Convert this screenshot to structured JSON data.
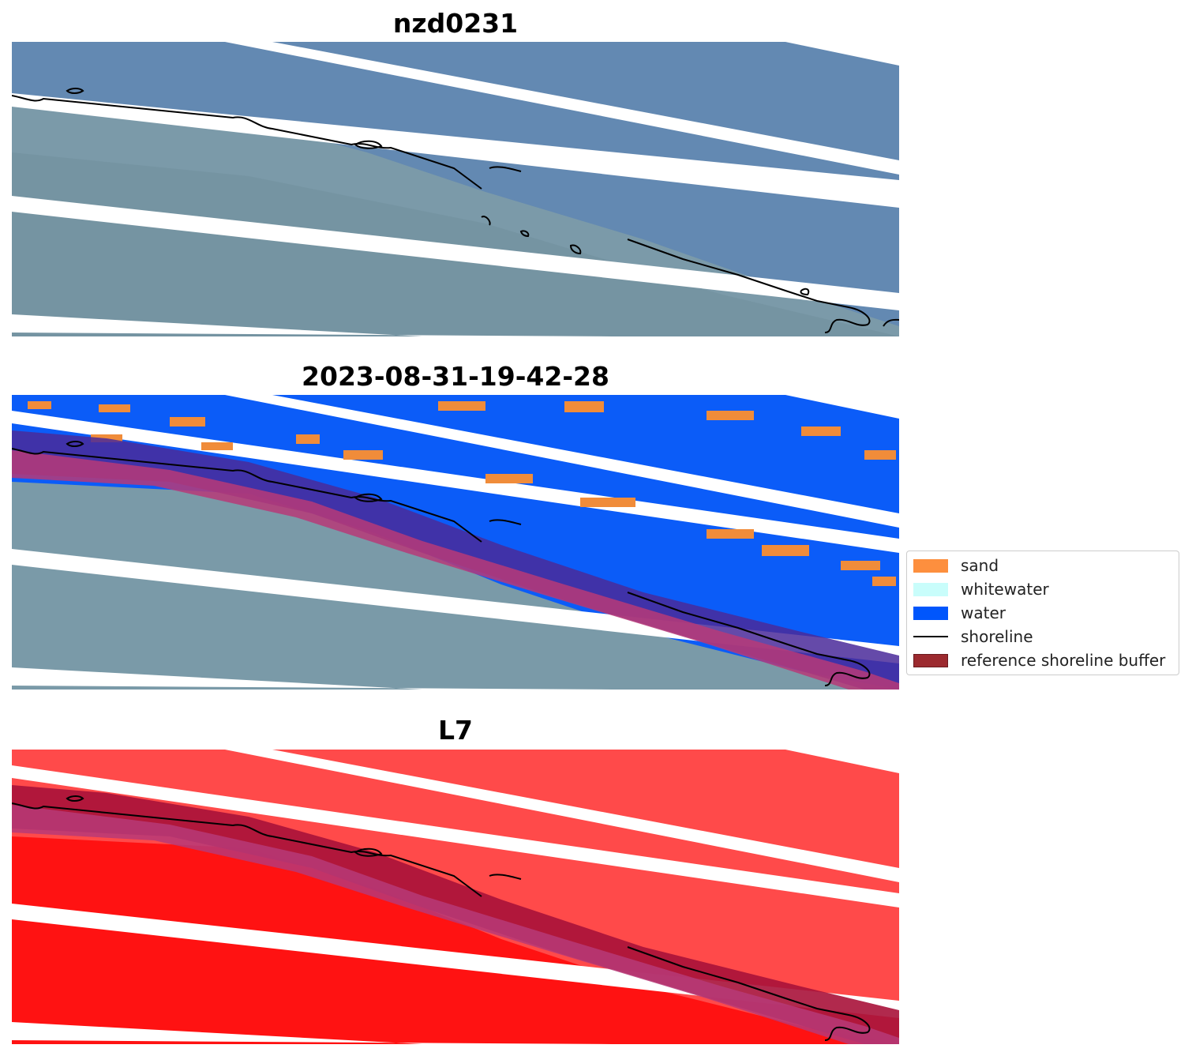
{
  "panels": [
    {
      "title": "nzd0231"
    },
    {
      "title": "2023-08-31-19-42-28"
    },
    {
      "title": "L7"
    }
  ],
  "legend": {
    "items": [
      {
        "label": "sand",
        "color": "#fd8f3e"
      },
      {
        "label": "whitewater",
        "color": "#c9fdfb"
      },
      {
        "label": "water",
        "color": "#0056fc"
      },
      {
        "label": "shoreline",
        "color": "#000000"
      },
      {
        "label": "reference shoreline buffer",
        "color": "#9c2a2f"
      }
    ]
  },
  "colors": {
    "rgb_water": "#5f87b3",
    "rgb_land": "#7d9db0",
    "ndwi_water": "#ff4a4a",
    "ndwi_land": "#ff1010",
    "buffer": "#b73a78",
    "buffer_over_water": "#4a2a9a"
  }
}
